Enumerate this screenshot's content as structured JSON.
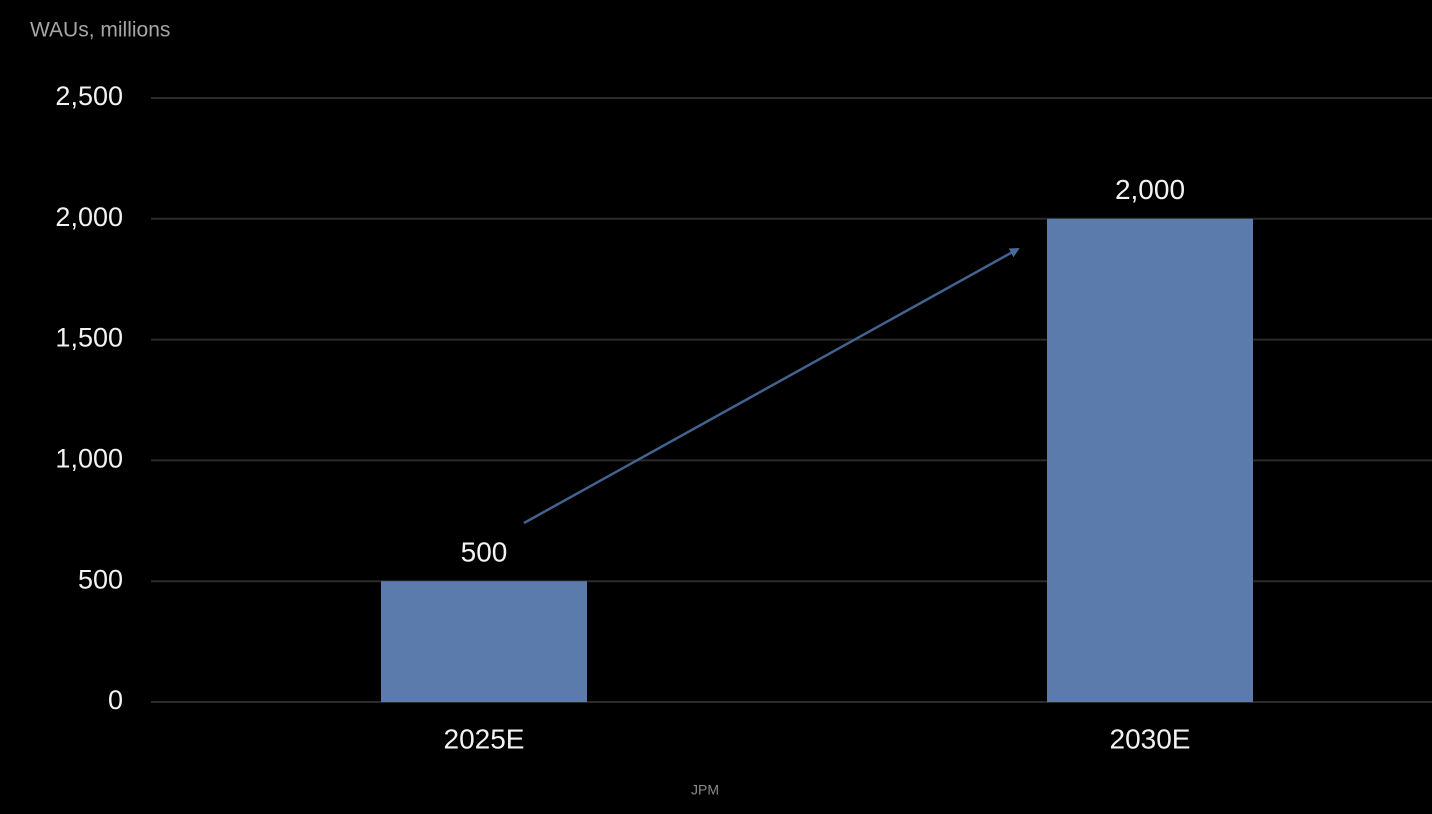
{
  "chart_data": {
    "type": "bar",
    "y_label": "WAUs, millions",
    "source": "JPM",
    "categories": [
      "2025E",
      "2030E"
    ],
    "values": [
      500,
      2000
    ],
    "value_labels": [
      "500",
      "2,000"
    ],
    "color": "#5b7bad",
    "ylim": [
      0,
      2500
    ],
    "yticks": [
      0,
      500,
      {
        "value": 1000,
        "label": "1,000"
      },
      {
        "value": 1500,
        "label": "1,500"
      },
      {
        "value": 2000,
        "label": "2,000"
      },
      {
        "value": 2500,
        "label": "2,500"
      }
    ],
    "grid": true
  }
}
